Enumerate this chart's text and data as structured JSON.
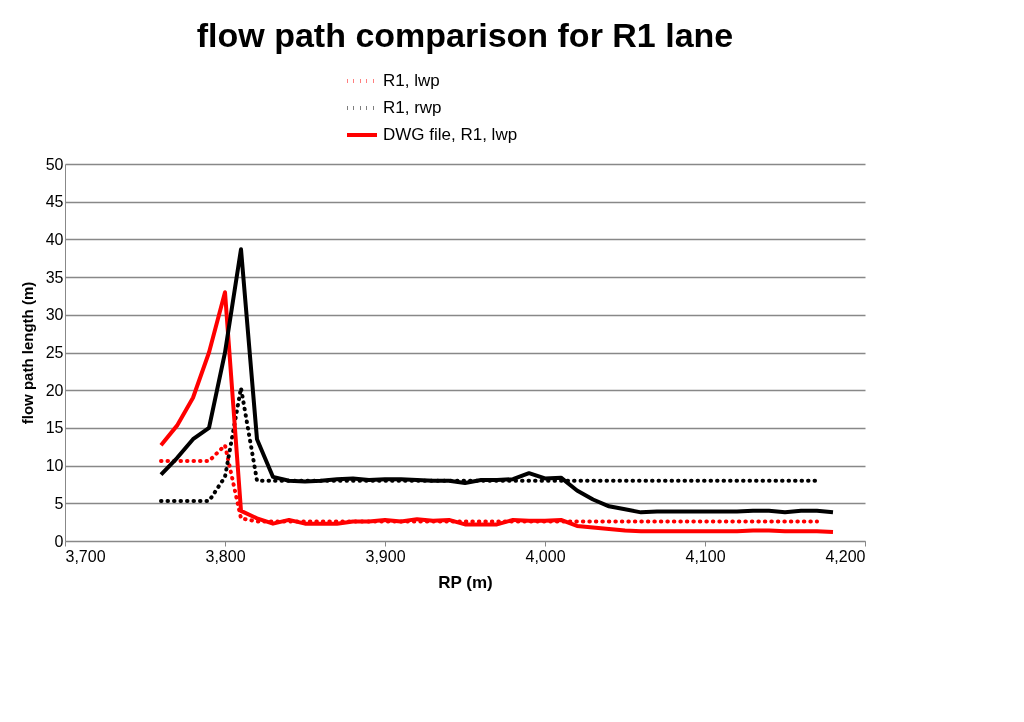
{
  "chart_data": {
    "type": "line",
    "title": "flow path comparison for R1 lane",
    "xlabel": "RP (m)",
    "ylabel": "flow path length (m)",
    "xlim": [
      3700,
      4200
    ],
    "xticks": [
      {
        "value": 3700,
        "label": "3,700"
      },
      {
        "value": 3800,
        "label": "3,800"
      },
      {
        "value": 3900,
        "label": "3,900"
      },
      {
        "value": 4000,
        "label": "4,000"
      },
      {
        "value": 4100,
        "label": "4,100"
      },
      {
        "value": 4200,
        "label": "4,200"
      }
    ],
    "ylim": [
      0,
      50
    ],
    "yticks": [
      0,
      5,
      10,
      15,
      20,
      25,
      30,
      35,
      40,
      45,
      50
    ],
    "grid": "y",
    "legend": "top",
    "marker": "none",
    "x": [
      3760,
      3770,
      3780,
      3790,
      3800,
      3810,
      3820,
      3830,
      3840,
      3850,
      3860,
      3870,
      3880,
      3890,
      3900,
      3910,
      3920,
      3930,
      3940,
      3950,
      3960,
      3970,
      3980,
      3990,
      4000,
      4010,
      4020,
      4030,
      4040,
      4050,
      4060,
      4070,
      4080,
      4090,
      4100,
      4110,
      4120,
      4130,
      4140,
      4150,
      4160,
      4170,
      4180
    ],
    "series": [
      {
        "name": "R1, lwp",
        "color": "#ff0000",
        "line_style": "dotted",
        "values": [
          10.6,
          10.6,
          10.6,
          10.6,
          12.7,
          3.0,
          2.6,
          2.6,
          2.6,
          2.6,
          2.6,
          2.6,
          2.6,
          2.6,
          2.6,
          2.6,
          2.6,
          2.6,
          2.6,
          2.6,
          2.6,
          2.6,
          2.6,
          2.6,
          2.6,
          2.6,
          2.6,
          2.6,
          2.6,
          2.6,
          2.6,
          2.6,
          2.6,
          2.6,
          2.6,
          2.6,
          2.6,
          2.6,
          2.6,
          2.6,
          2.6,
          2.6,
          null
        ]
      },
      {
        "name": "R1, rwp",
        "color": "#000000",
        "line_style": "dotted",
        "values": [
          5.3,
          5.3,
          5.3,
          5.3,
          8.5,
          20.3,
          8.0,
          8.0,
          8.0,
          8.0,
          8.0,
          8.0,
          8.0,
          8.0,
          8.0,
          8.0,
          8.0,
          8.0,
          8.0,
          8.0,
          8.0,
          8.0,
          8.0,
          8.0,
          8.0,
          8.0,
          8.0,
          8.0,
          8.0,
          8.0,
          8.0,
          8.0,
          8.0,
          8.0,
          8.0,
          8.0,
          8.0,
          8.0,
          8.0,
          8.0,
          8.0,
          8.0,
          null
        ]
      },
      {
        "name": "DWG file, R1, lwp",
        "color": "#ff0000",
        "line_style": "solid",
        "values": [
          12.7,
          15.3,
          19,
          25,
          33,
          4,
          3,
          2.3,
          2.8,
          2.3,
          2.3,
          2.3,
          2.6,
          2.6,
          2.8,
          2.6,
          2.9,
          2.7,
          2.8,
          2.2,
          2.2,
          2.2,
          2.8,
          2.7,
          2.7,
          2.8,
          2.0,
          1.8,
          1.6,
          1.4,
          1.3,
          1.3,
          1.3,
          1.3,
          1.3,
          1.3,
          1.3,
          1.4,
          1.4,
          1.3,
          1.3,
          1.3,
          1.2
        ]
      },
      {
        "color": "#000000",
        "line_style": "solid",
        "values": [
          8.8,
          11,
          13.5,
          15,
          25,
          38.7,
          13.5,
          8.5,
          8.0,
          7.9,
          8.0,
          8.2,
          8.3,
          8.1,
          8.2,
          8.2,
          8.1,
          8.0,
          8.0,
          7.7,
          8.1,
          8.1,
          8.2,
          9.0,
          8.3,
          8.4,
          6.7,
          5.5,
          4.6,
          4.2,
          3.8,
          3.9,
          3.9,
          3.9,
          3.9,
          3.9,
          3.9,
          4.0,
          4.0,
          3.8,
          4.0,
          4.0,
          3.8
        ]
      }
    ]
  }
}
